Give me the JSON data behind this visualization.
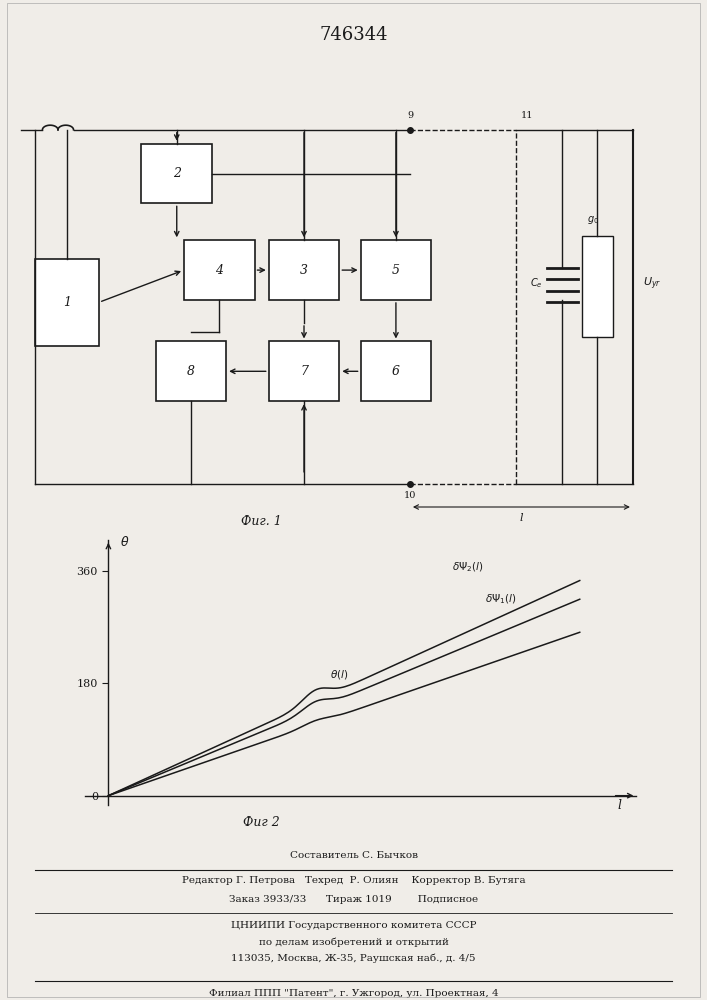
{
  "patent_number": "746344",
  "fig1_label": "Фиг. 1",
  "fig2_label": "Фиг 2",
  "bg_color": "#f0ede8",
  "line_color": "#1a1a1a",
  "footer_lines": [
    "Составитель С. Бычков",
    "Редактор Г. Петрова   Техред  Р. Олиян    Корректор В. Бутяга",
    "Заказ 3933/33      Тираж 1019        Подписное",
    "ЦНИИПИ Государственного комитета СССР",
    "по делам изобретений и открытий",
    "113035, Москва, Ж-35, Раушская наб., д. 4/5",
    "Филиал ППП \"Патент\", г. Ужгород, ул. Проектная, 4"
  ]
}
